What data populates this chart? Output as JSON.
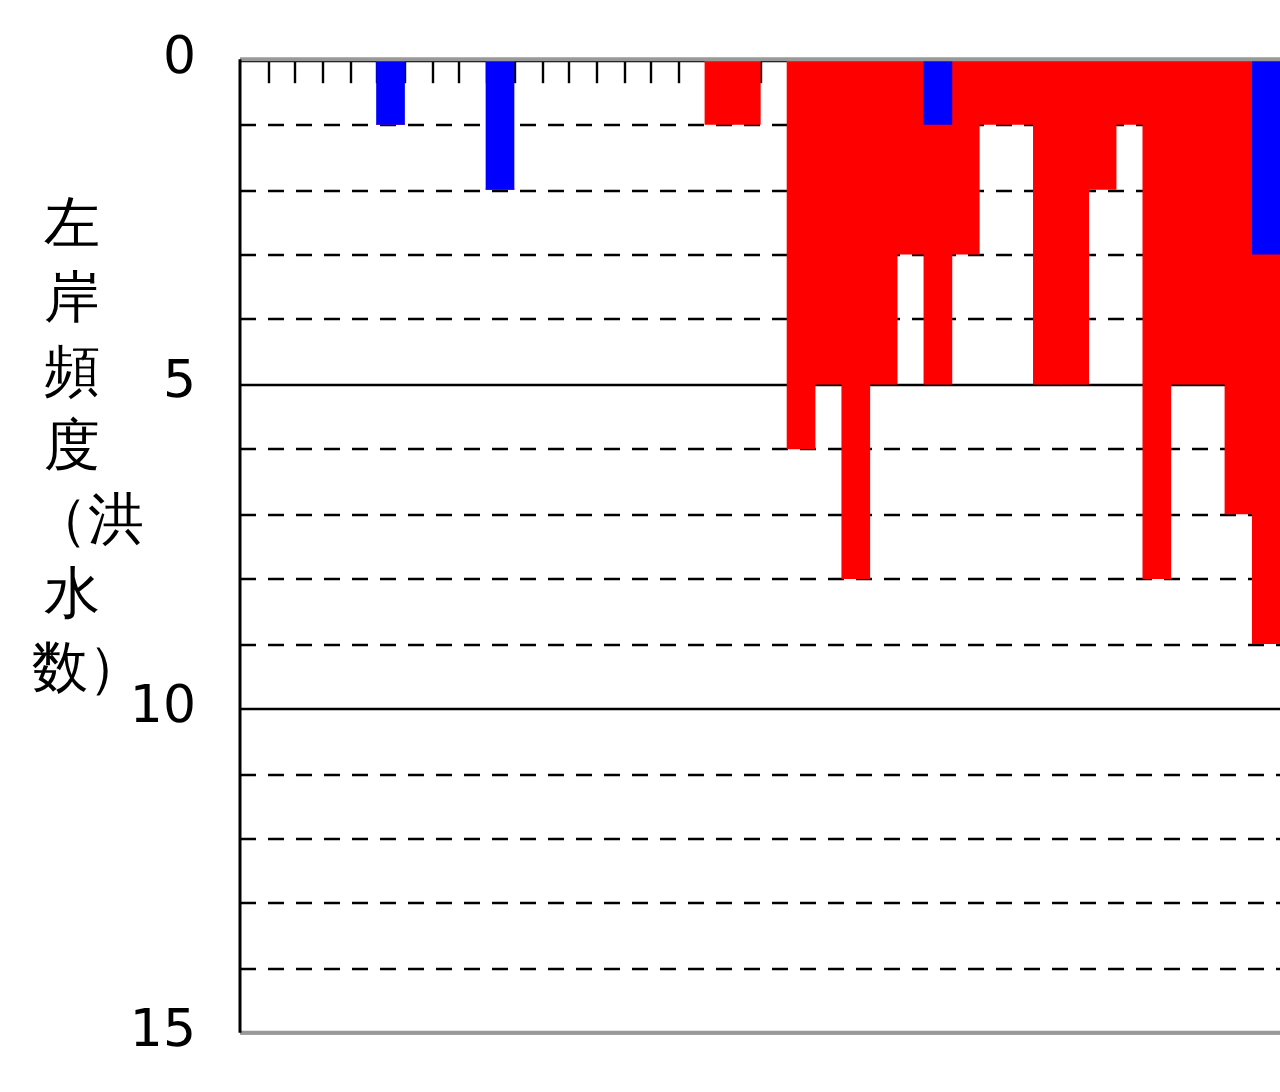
{
  "chart_data": {
    "type": "bar",
    "ylabel": "左岸頻度（洪水数）",
    "stacked": true,
    "categories": [
      null,
      null,
      null,
      null,
      null,
      null,
      null,
      null,
      null,
      null,
      null,
      null,
      null,
      null,
      null,
      null,
      null,
      null,
      null,
      null,
      null,
      null,
      null,
      null,
      null,
      null,
      null,
      null,
      null,
      null,
      null,
      null,
      null,
      null,
      null,
      null,
      null,
      null
    ],
    "series": [
      {
        "color": "#0000ff",
        "values": [
          0,
          0,
          0,
          0,
          0,
          1,
          0,
          0,
          0,
          2,
          0,
          0,
          0,
          0,
          0,
          0,
          0,
          0,
          0,
          0,
          0,
          0,
          0,
          0,
          0,
          1,
          0,
          0,
          0,
          0,
          0,
          0,
          0,
          0,
          0,
          0,
          0,
          3
        ]
      },
      {
        "color": "#ff0000",
        "values": [
          0,
          0,
          0,
          0,
          0,
          0,
          0,
          0,
          0,
          0,
          0,
          0,
          0,
          0,
          0,
          0,
          0,
          1,
          1,
          0,
          6,
          5,
          8,
          5,
          3,
          4,
          3,
          1,
          1,
          5,
          5,
          2,
          1,
          8,
          5,
          5,
          7,
          6
        ]
      }
    ],
    "ylim": [
      15,
      0
    ],
    "yticks": [
      0,
      {
        "value": 1,
        "label": null
      },
      {
        "value": 2,
        "label": null
      },
      {
        "value": 3,
        "label": null
      },
      {
        "value": 4,
        "label": null
      },
      5,
      {
        "value": 6,
        "label": null
      },
      {
        "value": 7,
        "label": null
      },
      {
        "value": 8,
        "label": null
      },
      {
        "value": 9,
        "label": null
      },
      10,
      {
        "value": 11,
        "label": null
      },
      {
        "value": 12,
        "label": null
      },
      {
        "value": 13,
        "label": null
      },
      {
        "value": 14,
        "label": null
      },
      15
    ],
    "grid": "y",
    "legend": false,
    "tick_labels": "y"
  }
}
